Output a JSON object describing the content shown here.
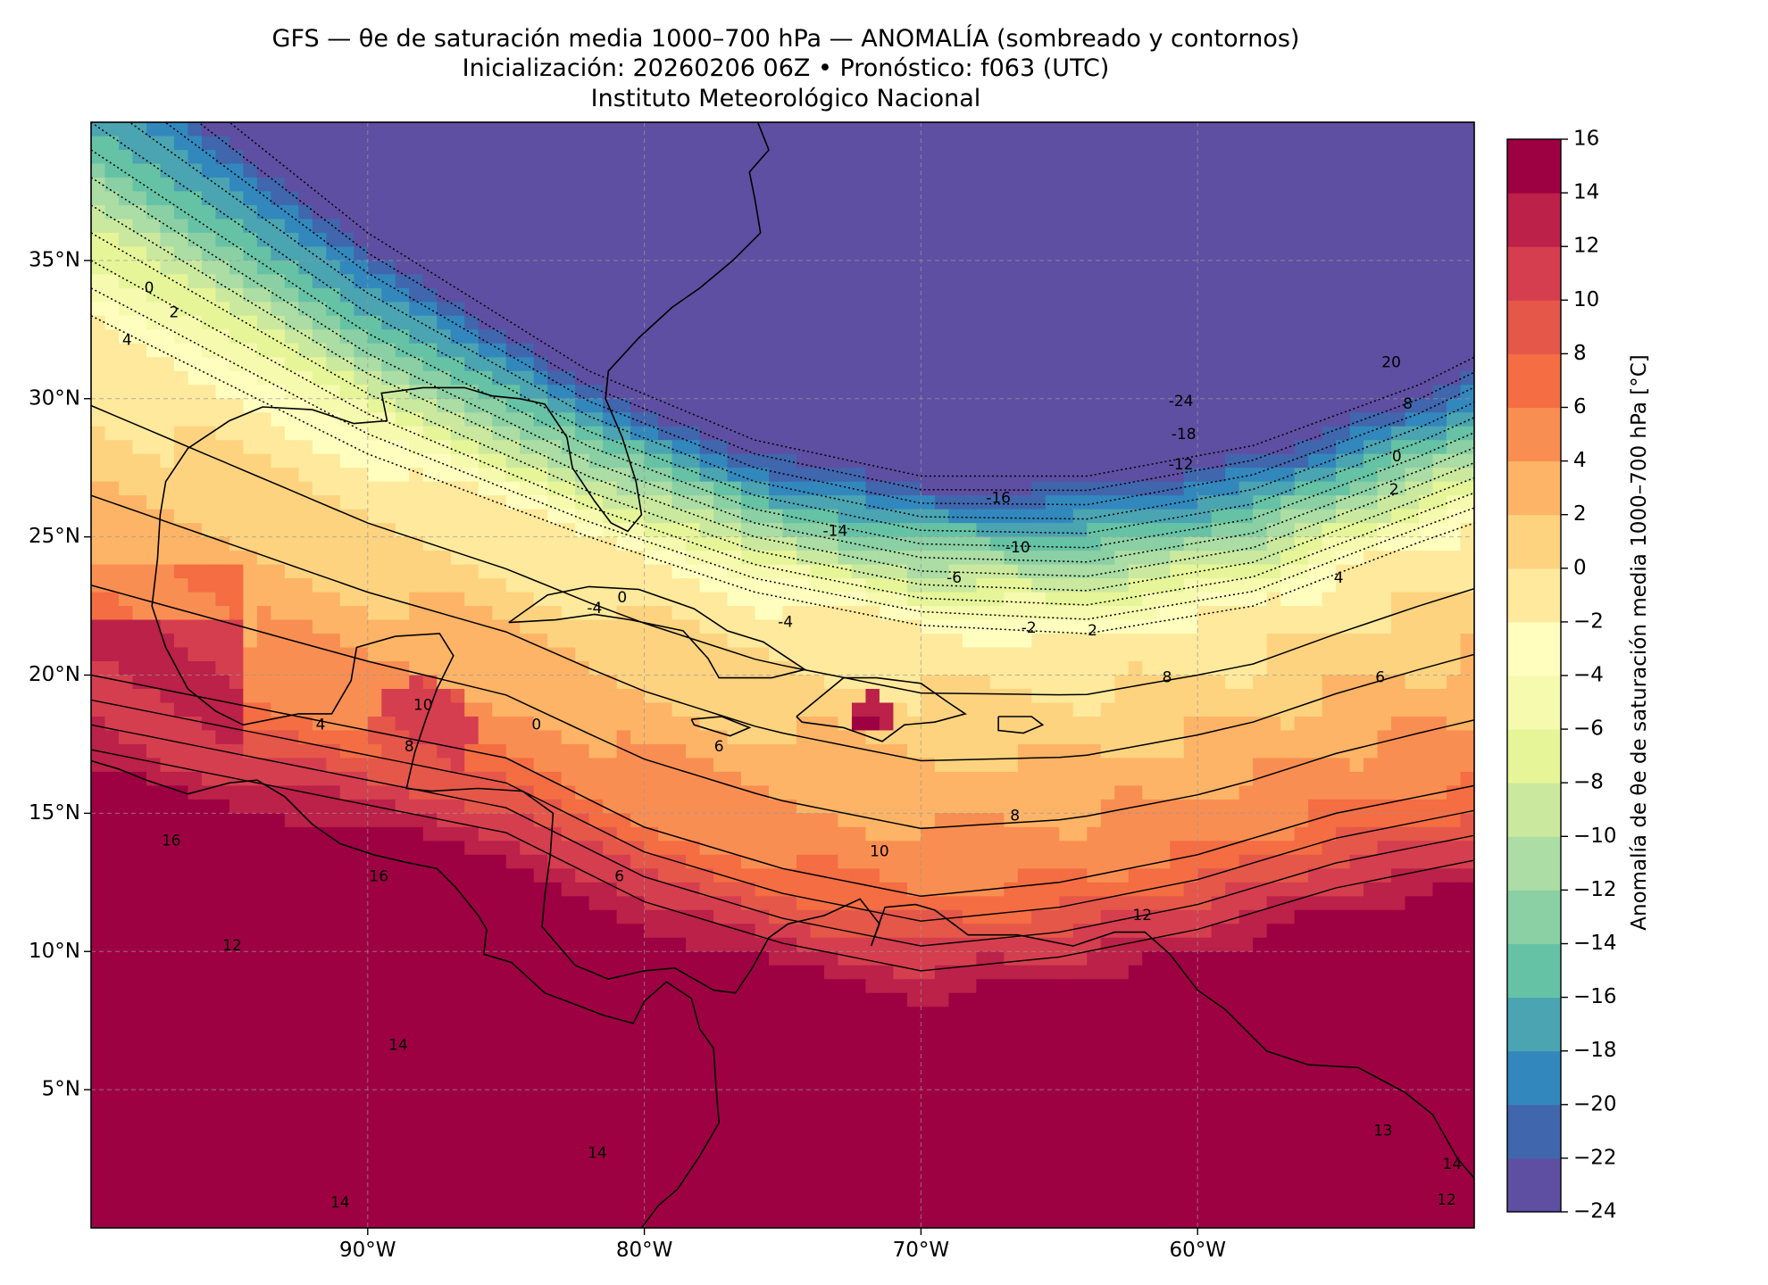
{
  "title": {
    "line1": "GFS — θe de saturación media 1000–700 hPa — ANOMALÍA (sombreado y contornos)",
    "line2": "Inicialización: 20260206 06Z   •   Pronóstico: f063 (UTC)",
    "line3": "Instituto Meteorológico Nacional"
  },
  "map": {
    "lat_ticks": [
      "35°N",
      "30°N",
      "25°N",
      "20°N",
      "15°N",
      "10°N",
      "5°N"
    ],
    "lon_ticks": [
      "90°W",
      "80°W",
      "70°W",
      "60°W"
    ],
    "lon_range": [
      -100,
      -50
    ],
    "lat_range": [
      0,
      40
    ],
    "gridlines": true,
    "contour_labels": [
      {
        "text": "0",
        "lon": -97.9,
        "lat": 34.0
      },
      {
        "text": "2",
        "lon": -97.0,
        "lat": 33.1
      },
      {
        "text": "4",
        "lon": -98.7,
        "lat": 32.1
      },
      {
        "text": "-24",
        "lon": -60.6,
        "lat": 29.9
      },
      {
        "text": "-18",
        "lon": -60.5,
        "lat": 28.7
      },
      {
        "text": "-12",
        "lon": -60.6,
        "lat": 27.6
      },
      {
        "text": "-16",
        "lon": -67.2,
        "lat": 26.4
      },
      {
        "text": "-14",
        "lon": -73.1,
        "lat": 25.2
      },
      {
        "text": "-10",
        "lon": -66.5,
        "lat": 24.6
      },
      {
        "text": "-6",
        "lon": -68.8,
        "lat": 23.5
      },
      {
        "text": "-4",
        "lon": -81.8,
        "lat": 22.4
      },
      {
        "text": "0",
        "lon": -80.8,
        "lat": 22.8
      },
      {
        "text": "-4",
        "lon": -74.9,
        "lat": 21.9
      },
      {
        "text": "-2",
        "lon": -66.1,
        "lat": 21.7
      },
      {
        "text": "20",
        "lon": -53.0,
        "lat": 31.3
      },
      {
        "text": "8",
        "lon": -52.4,
        "lat": 29.8
      },
      {
        "text": "0",
        "lon": -52.8,
        "lat": 27.9
      },
      {
        "text": "2",
        "lon": -52.9,
        "lat": 26.7
      },
      {
        "text": "4",
        "lon": -54.9,
        "lat": 23.5
      },
      {
        "text": "2",
        "lon": -63.8,
        "lat": 21.6
      },
      {
        "text": "8",
        "lon": -61.1,
        "lat": 19.9
      },
      {
        "text": "6",
        "lon": -53.4,
        "lat": 19.9
      },
      {
        "text": "10",
        "lon": -88.0,
        "lat": 18.9
      },
      {
        "text": "4",
        "lon": -91.7,
        "lat": 18.2
      },
      {
        "text": "8",
        "lon": -88.5,
        "lat": 17.4
      },
      {
        "text": "0",
        "lon": -83.9,
        "lat": 18.2
      },
      {
        "text": "6",
        "lon": -77.3,
        "lat": 17.4
      },
      {
        "text": "8",
        "lon": -66.6,
        "lat": 14.9
      },
      {
        "text": "10",
        "lon": -71.5,
        "lat": 13.6
      },
      {
        "text": "6",
        "lon": -80.9,
        "lat": 12.7
      },
      {
        "text": "12",
        "lon": -62.0,
        "lat": 11.3
      },
      {
        "text": "16",
        "lon": -97.1,
        "lat": 14.0
      },
      {
        "text": "16",
        "lon": -89.6,
        "lat": 12.7
      },
      {
        "text": "12",
        "lon": -94.9,
        "lat": 10.2
      },
      {
        "text": "14",
        "lon": -88.9,
        "lat": 6.6
      },
      {
        "text": "14",
        "lon": -81.7,
        "lat": 2.7
      },
      {
        "text": "14",
        "lon": -91.0,
        "lat": 0.9
      },
      {
        "text": "13",
        "lon": -53.3,
        "lat": 3.5
      },
      {
        "text": "14",
        "lon": -50.8,
        "lat": 2.3
      },
      {
        "text": "12",
        "lon": -51.0,
        "lat": 1.0
      }
    ]
  },
  "colorbar": {
    "label": "Anomalía de θe de saturación media 1000–700 hPa [°C]",
    "levels": [
      -24,
      -22,
      -20,
      -18,
      -16,
      -14,
      -12,
      -10,
      -8,
      -6,
      -4,
      -2,
      0,
      2,
      4,
      6,
      8,
      10,
      12,
      14,
      16
    ],
    "tick_labels": [
      "16",
      "14",
      "12",
      "10",
      "8",
      "6",
      "4",
      "2",
      "0",
      "−2",
      "−4",
      "−6",
      "−8",
      "−10",
      "−12",
      "−14",
      "−16",
      "−18",
      "−20",
      "−22",
      "−24"
    ],
    "colors": [
      "#5e4fa2",
      "#4066ad",
      "#3288bd",
      "#4ba4b1",
      "#66c2a5",
      "#8ad0a4",
      "#abdda4",
      "#cbe99e",
      "#e6f598",
      "#f5faaf",
      "#fffebe",
      "#fee99c",
      "#fdd380",
      "#fdb466",
      "#f98e52",
      "#f46d43",
      "#e55749",
      "#d53e4f",
      "#bb2149",
      "#9e0142"
    ]
  }
}
